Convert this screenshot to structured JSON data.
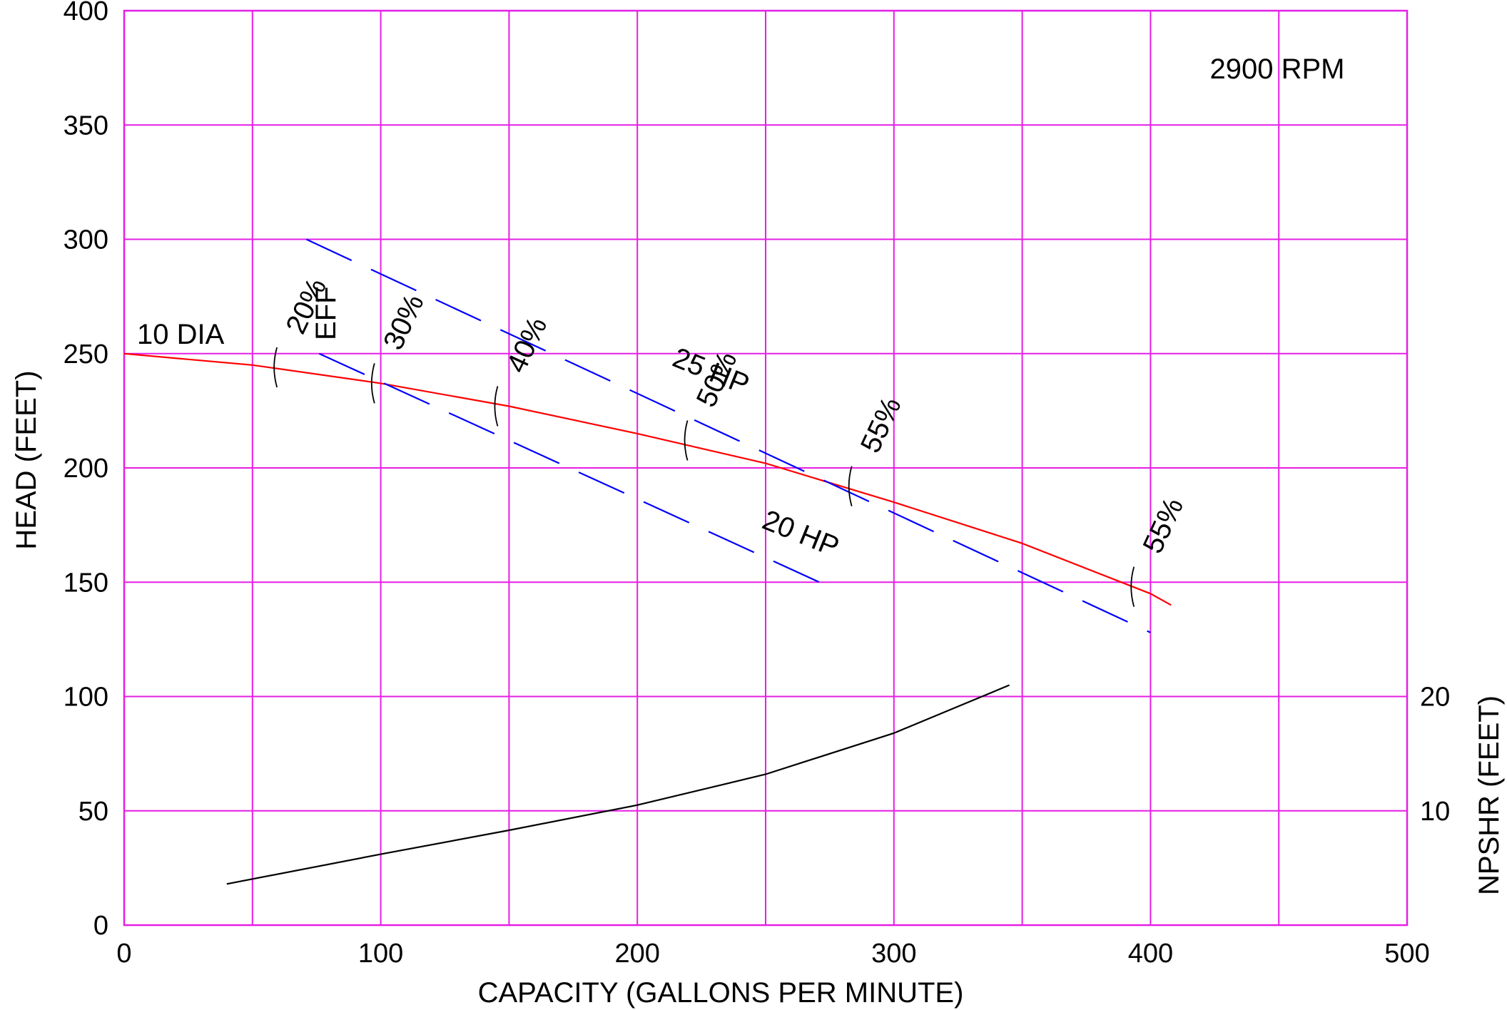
{
  "chart_data": {
    "type": "line",
    "title": "",
    "xlabel": "CAPACITY (GALLONS PER MINUTE)",
    "ylabel": "HEAD (FEET)",
    "y2label": "NPSHR (FEET)",
    "xlim": [
      0,
      500
    ],
    "ylim": [
      0,
      400
    ],
    "x_ticks": [
      "0",
      "100",
      "200",
      "300",
      "400",
      "500"
    ],
    "y_ticks": [
      "0",
      "50",
      "100",
      "150",
      "200",
      "250",
      "300",
      "350",
      "400"
    ],
    "y2_ticks": [
      "10",
      "20"
    ],
    "grid": true,
    "colors": {
      "grid": "#e61ee6",
      "head_curve": "#ff0000",
      "hp_lines": "#0000ff",
      "npshr_curve": "#000000"
    },
    "speed_label": "2900 RPM",
    "series": [
      {
        "name": "10 DIA",
        "color": "#ff0000",
        "x": [
          0,
          50,
          100,
          150,
          200,
          250,
          300,
          350,
          400,
          408
        ],
        "y": [
          250,
          245,
          237,
          227,
          215,
          202,
          185,
          167,
          145,
          140
        ]
      },
      {
        "name": "25 HP",
        "color": "#0000ff",
        "dashed": true,
        "x": [
          71,
          400
        ],
        "y": [
          300,
          128
        ]
      },
      {
        "name": "20 HP",
        "color": "#0000ff",
        "dashed": true,
        "x": [
          76,
          271
        ],
        "y": [
          250,
          150
        ]
      },
      {
        "name": "NPSHR",
        "axis": "y2",
        "color": "#000000",
        "x": [
          40,
          100,
          150,
          200,
          250,
          300,
          345
        ],
        "y": [
          3.6,
          6.2,
          8.3,
          10.5,
          13.2,
          16.8,
          21.0
        ]
      }
    ],
    "efficiency_marks": [
      {
        "label": "20%",
        "x": 59,
        "y": 244
      },
      {
        "label": "30%",
        "x": 97,
        "y": 237
      },
      {
        "label": "40%",
        "x": 145,
        "y": 227
      },
      {
        "label": "50%",
        "x": 219,
        "y": 212
      },
      {
        "label": "55%",
        "x": 283,
        "y": 192
      },
      {
        "label": "55%",
        "x": 393,
        "y": 148
      }
    ],
    "eff_label": "EFF",
    "hp_labels": [
      {
        "label": "25 HP",
        "x": 213,
        "y": 245
      },
      {
        "label": "20 HP",
        "x": 248,
        "y": 174
      }
    ]
  }
}
